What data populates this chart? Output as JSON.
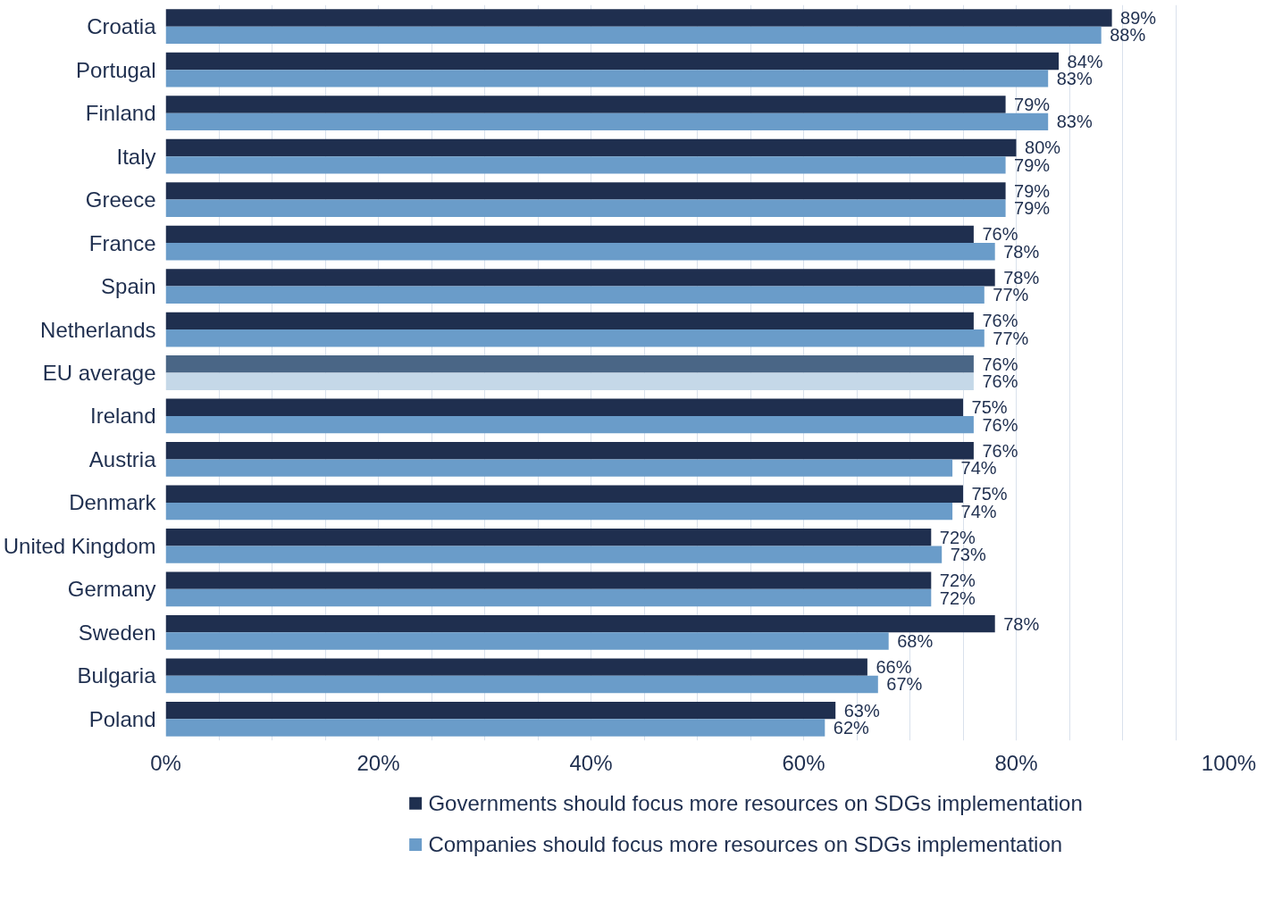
{
  "chart_data": {
    "type": "bar",
    "orientation": "horizontal",
    "categories": [
      "Croatia",
      "Portugal",
      "Finland",
      "Italy",
      "Greece",
      "France",
      "Spain",
      "Netherlands",
      "EU average",
      "Ireland",
      "Austria",
      "Denmark",
      "United Kingdom",
      "Germany",
      "Sweden",
      "Bulgaria",
      "Poland"
    ],
    "series": [
      {
        "name": "Governments should focus more resources on SDGs implementation",
        "color": "#1f2f4f",
        "colors": [
          "#1f2f4f",
          "#1f2f4f",
          "#1f2f4f",
          "#1f2f4f",
          "#1f2f4f",
          "#1f2f4f",
          "#1f2f4f",
          "#1f2f4f",
          "#4a6686",
          "#1f2f4f",
          "#1f2f4f",
          "#1f2f4f",
          "#1f2f4f",
          "#1f2f4f",
          "#1f2f4f",
          "#1f2f4f",
          "#1f2f4f"
        ],
        "values": [
          89,
          84,
          79,
          80,
          79,
          76,
          78,
          76,
          76,
          75,
          76,
          75,
          72,
          72,
          78,
          66,
          63
        ],
        "value_labels": [
          "89%",
          "84%",
          "79%",
          "80%",
          "79%",
          "76%",
          "78%",
          "76%",
          "76%",
          "75%",
          "76%",
          "75%",
          "72%",
          "72%",
          "78%",
          "66%",
          "63%"
        ]
      },
      {
        "name": "Companies should focus more resources on SDGs implementation",
        "color": "#6a9cc9",
        "colors": [
          "#6a9cc9",
          "#6a9cc9",
          "#6a9cc9",
          "#6a9cc9",
          "#6a9cc9",
          "#6a9cc9",
          "#6a9cc9",
          "#6a9cc9",
          "#c5d8e8",
          "#6a9cc9",
          "#6a9cc9",
          "#6a9cc9",
          "#6a9cc9",
          "#6a9cc9",
          "#6a9cc9",
          "#6a9cc9",
          "#6a9cc9"
        ],
        "values": [
          88,
          83,
          83,
          79,
          79,
          78,
          77,
          77,
          76,
          76,
          74,
          74,
          73,
          72,
          68,
          67,
          62
        ],
        "value_labels": [
          "88%",
          "83%",
          "83%",
          "79%",
          "79%",
          "78%",
          "77%",
          "77%",
          "76%",
          "76%",
          "74%",
          "74%",
          "73%",
          "72%",
          "68%",
          "67%",
          "62%"
        ]
      }
    ],
    "xlim": [
      0,
      100
    ],
    "xticks": [
      {
        "value": 0,
        "label": "0%"
      },
      {
        "value": 5,
        "label": null
      },
      {
        "value": 10,
        "label": null
      },
      {
        "value": 15,
        "label": null
      },
      {
        "value": 20,
        "label": "20%"
      },
      {
        "value": 25,
        "label": null
      },
      {
        "value": 30,
        "label": null
      },
      {
        "value": 35,
        "label": null
      },
      {
        "value": 40,
        "label": "40%"
      },
      {
        "value": 45,
        "label": null
      },
      {
        "value": 50,
        "label": null
      },
      {
        "value": 55,
        "label": null
      },
      {
        "value": 60,
        "label": "60%"
      },
      {
        "value": 65,
        "label": null
      },
      {
        "value": 70,
        "label": null
      },
      {
        "value": 75,
        "label": null
      },
      {
        "value": 80,
        "label": "80%"
      },
      {
        "value": 85,
        "label": null
      },
      {
        "value": 90,
        "label": null
      },
      {
        "value": 95,
        "label": null
      },
      {
        "value": 100,
        "label": "100%"
      }
    ],
    "grid": "x",
    "legend": "bottom"
  }
}
